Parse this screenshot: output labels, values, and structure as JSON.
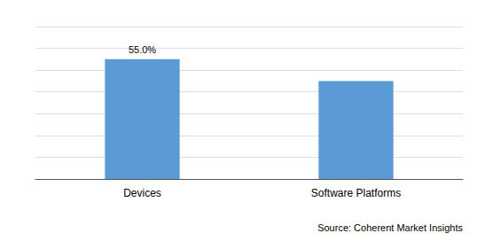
{
  "chart_data": {
    "type": "bar",
    "categories": [
      "Devices",
      "Software Platforms"
    ],
    "values": [
      55.0,
      45.0
    ],
    "value_labels": [
      "55.0%",
      null
    ],
    "data_labels": true,
    "color": "#5B9BD5",
    "ylim": [
      0,
      70
    ],
    "yticks": [
      0,
      10,
      20,
      30,
      40,
      50,
      60,
      70
    ],
    "tick_labels": "x",
    "grid": true,
    "annotations": [
      "Source: Coherent Market Insights"
    ]
  }
}
